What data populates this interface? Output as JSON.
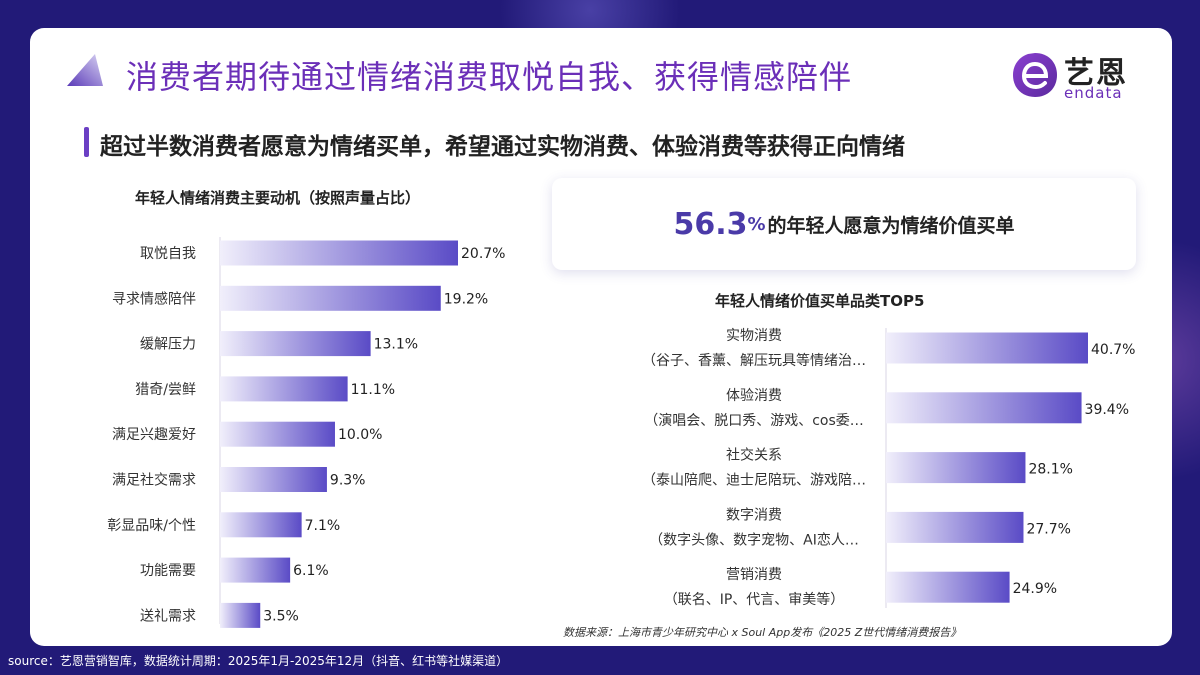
{
  "header": {
    "title": "消费者期待通过情绪消费取悦自我、获得情感陪伴",
    "subtitle": "超过半数消费者愿意为情绪买单，希望通过实物消费、体验消费等获得正向情绪"
  },
  "logo": {
    "cn": "艺恩",
    "en": "endata"
  },
  "stat": {
    "number": "56.3",
    "unit": "%",
    "text": "的年轻人愿意为情绪价值买单"
  },
  "colors": {
    "accent": "#6b2fb8",
    "bar_start": "#f1effb",
    "bar_end": "#5a4bc6",
    "background": "#221a78"
  },
  "chart_data": [
    {
      "type": "bar",
      "orientation": "horizontal",
      "title": "年轻人情绪消费主要动机（按照声量占比）",
      "categories": [
        "取悦自我",
        "寻求情感陪伴",
        "缓解压力",
        "猎奇/尝鲜",
        "满足兴趣爱好",
        "满足社交需求",
        "彰显品味/个性",
        "功能需要",
        "送礼需求"
      ],
      "values": [
        20.7,
        19.2,
        13.1,
        11.1,
        10.0,
        9.3,
        7.1,
        6.1,
        3.5
      ],
      "labels": [
        "20.7%",
        "19.2%",
        "13.1%",
        "11.1%",
        "10.0%",
        "9.3%",
        "7.1%",
        "6.1%",
        "3.5%"
      ],
      "unit": "%"
    },
    {
      "type": "bar",
      "orientation": "horizontal",
      "title": "年轻人情绪价值买单品类TOP5",
      "categories": [
        "实物消费",
        "体验消费",
        "社交关系",
        "数字消费",
        "营销消费"
      ],
      "subcategories": [
        "（谷子、香薰、解压玩具等情绪治…",
        "（演唱会、脱口秀、游戏、cos委…",
        "（泰山陪爬、迪士尼陪玩、游戏陪…",
        "（数字头像、数字宠物、AI恋人…",
        "（联名、IP、代言、审美等）"
      ],
      "values": [
        40.7,
        39.4,
        28.1,
        27.7,
        24.9
      ],
      "labels": [
        "40.7%",
        "39.4%",
        "28.1%",
        "27.7%",
        "24.9%"
      ],
      "unit": "%"
    }
  ],
  "footer": {
    "source": "source：艺恩营销智库，数据统计周期：2025年1月-2025年12月（抖音、红书等社媒渠道）",
    "datasource": "数据来源：上海市青少年研究中心 x Soul App发布《2025 Z世代情绪消费报告》"
  }
}
